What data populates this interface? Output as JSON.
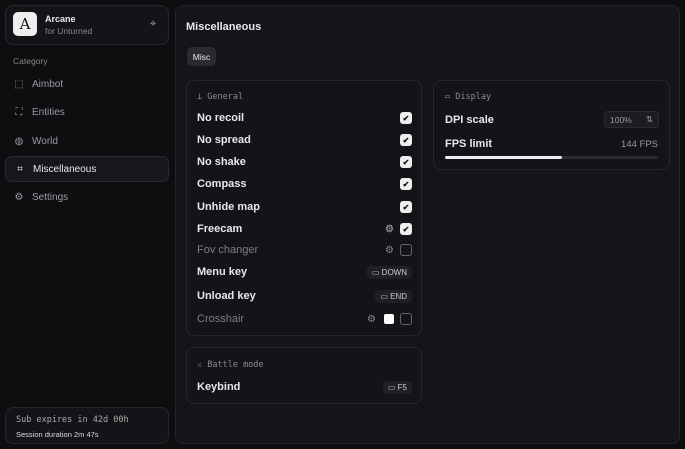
{
  "sidebar": {
    "app_name": "Arcane",
    "app_sub": "for Unturned",
    "logo_letter": "A",
    "category_label": "Category",
    "items": [
      {
        "label": "Aimbot",
        "icon": "crosshair-icon"
      },
      {
        "label": "Entities",
        "icon": "entities-icon"
      },
      {
        "label": "World",
        "icon": "globe-icon"
      },
      {
        "label": "Miscellaneous",
        "icon": "grid-icon",
        "selected": true
      },
      {
        "label": "Settings",
        "icon": "gear-icon"
      }
    ],
    "sub_expires": "Sub expires in 42d 00h",
    "session": "Session duration 2m 47s"
  },
  "main": {
    "title": "Miscellaneous",
    "tab": "Misc",
    "general": {
      "title": "General",
      "rows": [
        {
          "label": "No recoil",
          "checked": true
        },
        {
          "label": "No spread",
          "checked": true
        },
        {
          "label": "No shake",
          "checked": true
        },
        {
          "label": "Compass",
          "checked": true
        },
        {
          "label": "Unhide map",
          "checked": true
        },
        {
          "label": "Freecam",
          "checked": true,
          "gear": true
        },
        {
          "label": "Fov changer",
          "checked": false,
          "gear": true,
          "dim": true
        }
      ],
      "menu_key": {
        "label": "Menu key",
        "key": "DOWN"
      },
      "unload_key": {
        "label": "Unload key",
        "key": "END"
      },
      "crosshair": {
        "label": "Crosshair",
        "checked": false,
        "color": "#ffffff"
      }
    },
    "battle": {
      "title": "Battle mode",
      "keybind_label": "Keybind",
      "key": "F5"
    },
    "display": {
      "title": "Display",
      "dpi_label": "DPI scale",
      "dpi_value": "100%",
      "fps_label": "FPS limit",
      "fps_value": "144 FPS",
      "fps_fill_percent": 55
    }
  },
  "check_glyph": "✔"
}
